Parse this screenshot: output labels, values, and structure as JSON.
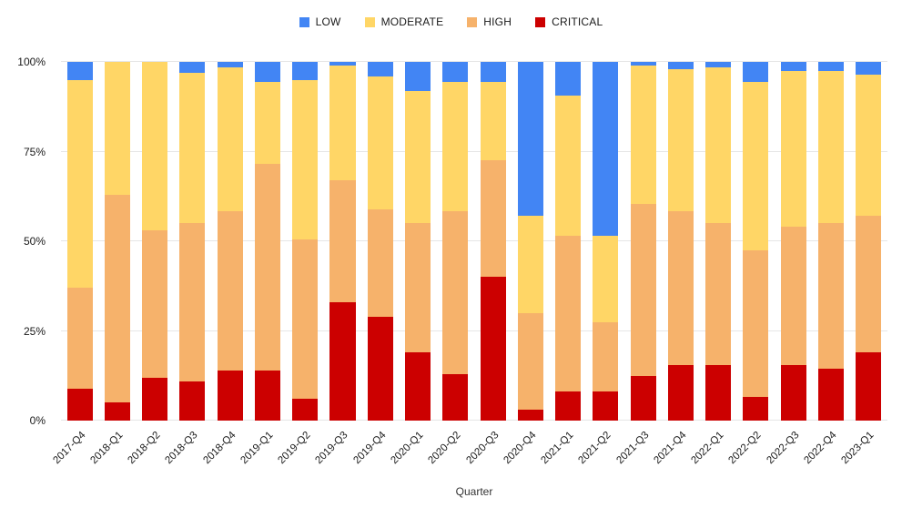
{
  "chart_data": {
    "type": "bar",
    "stacked": true,
    "percent": true,
    "title": "",
    "xlabel": "Quarter",
    "ylabel": "",
    "ylim": [
      0,
      100
    ],
    "grid": true,
    "legend_position": "top-center",
    "yticks": [
      {
        "value": 0,
        "label": "0%"
      },
      {
        "value": 25,
        "label": "25%"
      },
      {
        "value": 50,
        "label": "50%"
      },
      {
        "value": 75,
        "label": "75%"
      },
      {
        "value": 100,
        "label": "100%"
      }
    ],
    "categories": [
      "2017-Q4",
      "2018-Q1",
      "2018-Q2",
      "2018-Q3",
      "2018-Q4",
      "2019-Q1",
      "2019-Q2",
      "2019-Q3",
      "2019-Q4",
      "2020-Q1",
      "2020-Q2",
      "2020-Q3",
      "2020-Q4",
      "2021-Q1",
      "2021-Q2",
      "2021-Q3",
      "2021-Q4",
      "2022-Q1",
      "2022-Q2",
      "2022-Q3",
      "2022-Q4",
      "2023-Q1"
    ],
    "series": [
      {
        "name": "LOW",
        "color": "#4285F4",
        "values": [
          5,
          0,
          0,
          3,
          1.5,
          5.5,
          5,
          1,
          4,
          8,
          5.5,
          5.5,
          43,
          9.5,
          48.5,
          1,
          2,
          1.5,
          5.5,
          2.5,
          2.5,
          3.5
        ]
      },
      {
        "name": "MODERATE",
        "color": "#FFD666",
        "values": [
          58,
          37,
          47,
          42,
          40,
          23,
          44.5,
          32,
          37,
          37,
          36,
          22,
          27,
          39,
          24,
          38.5,
          39.5,
          43.5,
          47,
          43.5,
          42.5,
          39.5
        ]
      },
      {
        "name": "HIGH",
        "color": "#F6B26B",
        "values": [
          28,
          58,
          41,
          44,
          44.5,
          57.5,
          44.5,
          34,
          30,
          36,
          45.5,
          32.5,
          27,
          43.5,
          19.5,
          48,
          43,
          39.5,
          41,
          38.5,
          40.5,
          38
        ]
      },
      {
        "name": "CRITICAL",
        "color": "#CC0000",
        "values": [
          9,
          5,
          12,
          11,
          14,
          14,
          6,
          33,
          29,
          19,
          13,
          40,
          3,
          8,
          8,
          12.5,
          15.5,
          15.5,
          6.5,
          15.5,
          14.5,
          19
        ]
      }
    ]
  }
}
